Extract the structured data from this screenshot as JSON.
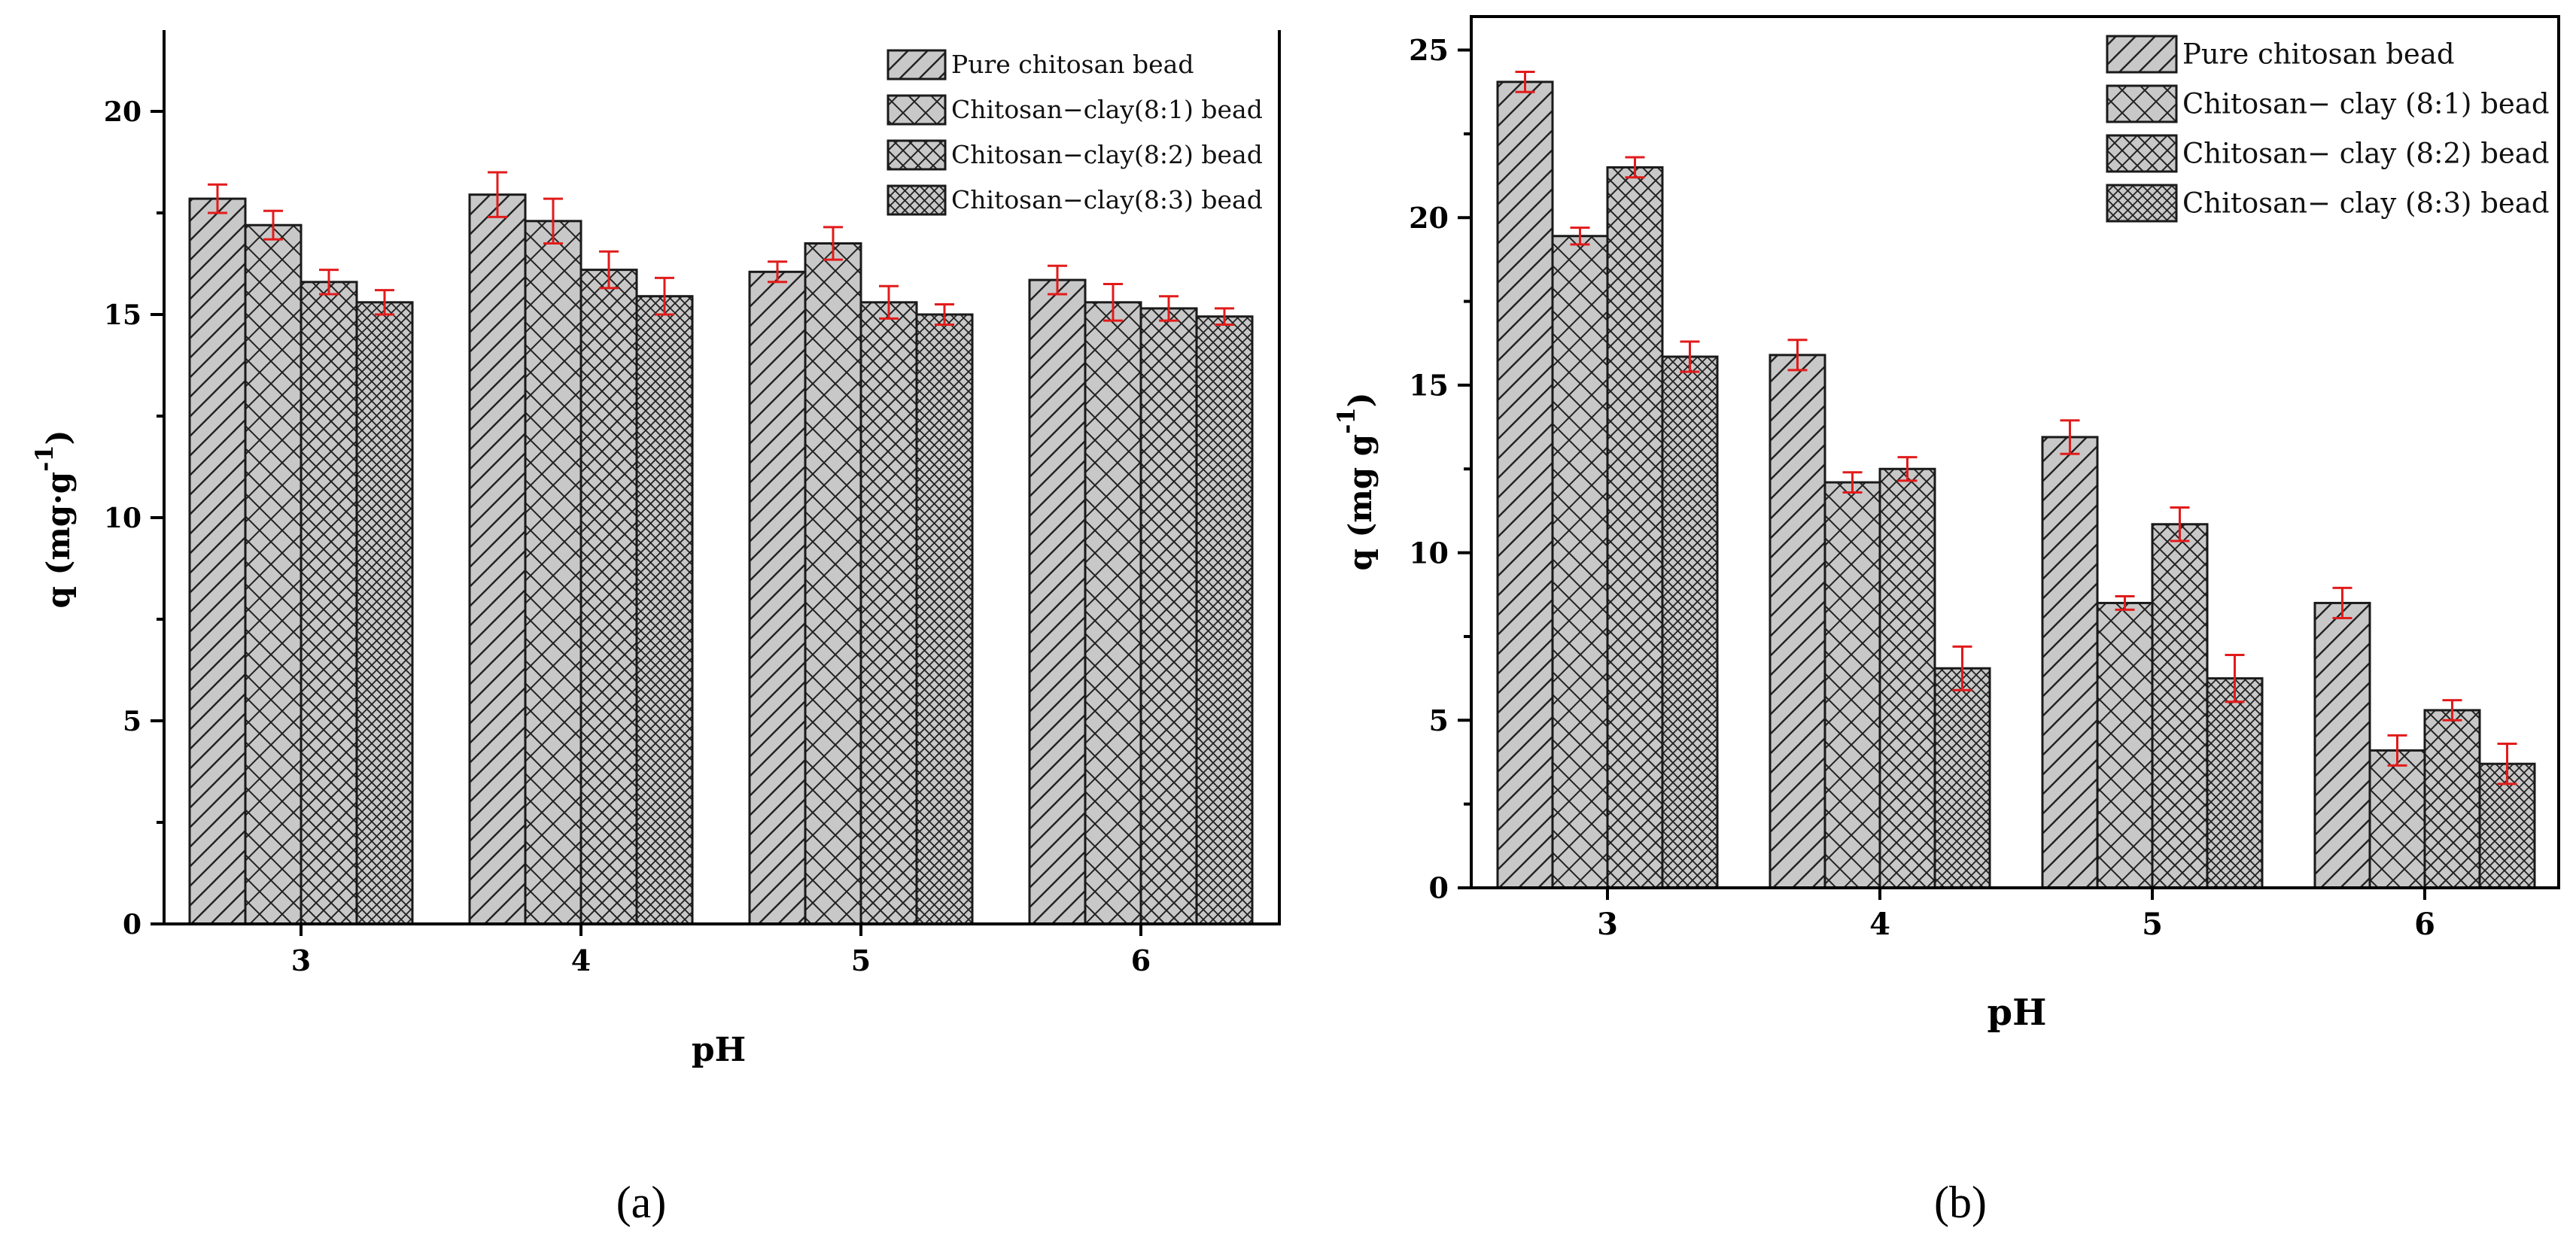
{
  "colors": {
    "bar_fill": "#c8c8c8",
    "bar_stroke": "#1a1a1a",
    "error_bar": "#e21b1b",
    "axis": "#000000"
  },
  "chart_data": [
    {
      "panel": "a",
      "panel_label": "(a)",
      "type": "bar",
      "title": "",
      "xlabel": "pH",
      "ylabel": "q (mg·g",
      "ylabel_sup": "-1",
      "ylabel_close": ")",
      "ylim": [
        0,
        22
      ],
      "yticks": [
        0,
        5,
        10,
        15,
        20
      ],
      "categories": [
        "3",
        "4",
        "5",
        "6"
      ],
      "legend_position": "top-right",
      "series": [
        {
          "name": "Pure chitosan bead",
          "pattern": "diag",
          "values": [
            17.85,
            17.95,
            16.05,
            15.85
          ],
          "errors": [
            0.35,
            0.55,
            0.25,
            0.35
          ]
        },
        {
          "name": "Chitosan−clay(8:1) bead",
          "pattern": "cross",
          "values": [
            17.2,
            17.3,
            16.75,
            15.3
          ],
          "errors": [
            0.35,
            0.55,
            0.4,
            0.45
          ]
        },
        {
          "name": "Chitosan−clay(8:2) bead",
          "pattern": "crossdense",
          "values": [
            15.8,
            16.1,
            15.3,
            15.15
          ],
          "errors": [
            0.3,
            0.45,
            0.4,
            0.3
          ]
        },
        {
          "name": "Chitosan−clay(8:3) bead",
          "pattern": "crossfine",
          "values": [
            15.3,
            15.45,
            15.0,
            14.95
          ],
          "errors": [
            0.3,
            0.45,
            0.25,
            0.2
          ]
        }
      ]
    },
    {
      "panel": "b",
      "panel_label": "(b)",
      "type": "bar",
      "title": "",
      "xlabel": "pH",
      "ylabel": "q (mg g",
      "ylabel_sup": "-1",
      "ylabel_close": ")",
      "ylim": [
        0,
        26
      ],
      "yticks": [
        0,
        5,
        10,
        15,
        20,
        25
      ],
      "categories": [
        "3",
        "4",
        "5",
        "6"
      ],
      "legend_position": "top-right",
      "series": [
        {
          "name": "Pure chitosan bead",
          "pattern": "diag",
          "values": [
            24.05,
            15.9,
            13.45,
            8.5
          ],
          "errors": [
            0.3,
            0.45,
            0.5,
            0.45
          ]
        },
        {
          "name": "Chitosan− clay (8:1) bead",
          "pattern": "cross",
          "values": [
            19.45,
            12.1,
            8.5,
            4.1
          ],
          "errors": [
            0.25,
            0.3,
            0.2,
            0.45
          ]
        },
        {
          "name": "Chitosan− clay (8:2) bead",
          "pattern": "crossdense",
          "values": [
            21.5,
            12.5,
            10.85,
            5.3
          ],
          "errors": [
            0.3,
            0.35,
            0.5,
            0.3
          ]
        },
        {
          "name": "Chitosan− clay (8:3) bead",
          "pattern": "crossfine",
          "values": [
            15.85,
            6.55,
            6.25,
            3.7
          ],
          "errors": [
            0.45,
            0.65,
            0.7,
            0.6
          ]
        }
      ]
    }
  ]
}
